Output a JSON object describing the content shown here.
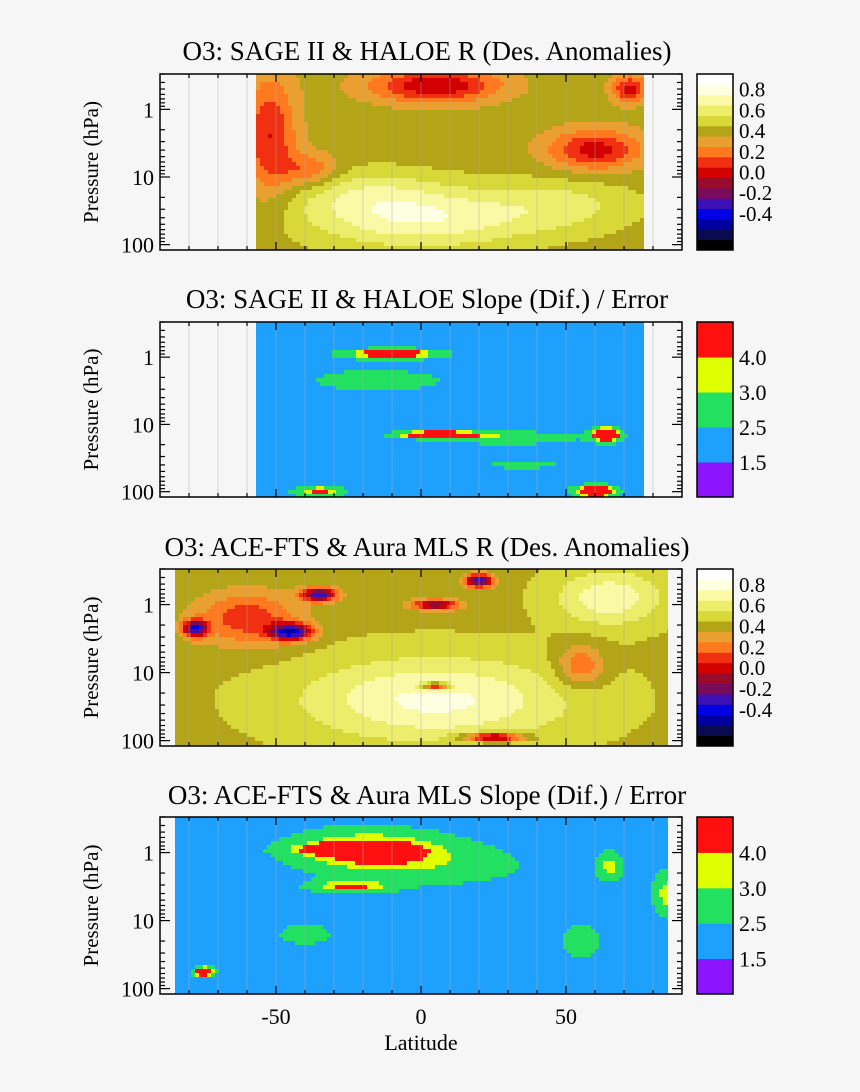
{
  "figure": {
    "xlabel": "Latitude",
    "ylabel": "Pressure (hPa)",
    "x_tick_labels": [
      "-50",
      "0",
      "50"
    ],
    "y_tick_labels": [
      "1",
      "10",
      "100"
    ]
  },
  "chart_data": [
    {
      "type": "heatmap",
      "title": "O3: SAGE II & HALOE R (Des. Anomalies)",
      "xlabel": "",
      "ylabel": "Pressure (hPa)",
      "x_ticks": [
        -50,
        0,
        50
      ],
      "y_ticks": [
        1,
        10,
        100
      ],
      "y_scale": "log",
      "y_reversed": true,
      "data_extent_lat": [
        -57,
        77
      ],
      "colorbar": {
        "labels": [
          "0.8",
          "0.6",
          "0.4",
          "0.2",
          "0.0",
          "-0.2",
          "-0.4"
        ],
        "levels": [
          -0.5,
          -0.4,
          -0.3,
          -0.2,
          -0.1,
          0.0,
          0.1,
          0.2,
          0.3,
          0.4,
          0.5,
          0.6,
          0.7,
          0.8,
          0.9,
          1.0
        ],
        "colors": [
          "#000000",
          "#0a0a50",
          "#0000a0",
          "#0000e6",
          "#3c10b4",
          "#7a0a5a",
          "#9a0a2a",
          "#d20000",
          "#f03010",
          "#ff7a1e",
          "#e9a030",
          "#b4a418",
          "#d8d838",
          "#eded6c",
          "#fafaa6",
          "#ffffe2",
          "#ffffff"
        ]
      },
      "grid": true
    },
    {
      "type": "heatmap",
      "title": "O3: SAGE II & HALOE Slope (Dif.) / Error",
      "xlabel": "",
      "ylabel": "Pressure (hPa)",
      "x_ticks": [
        -50,
        0,
        50
      ],
      "y_ticks": [
        1,
        10,
        100
      ],
      "y_scale": "log",
      "y_reversed": true,
      "data_extent_lat": [
        -57,
        77
      ],
      "colorbar": {
        "labels": [
          "4.0",
          "3.0",
          "2.5",
          "1.5"
        ],
        "levels": [
          0,
          1.5,
          2.5,
          3.0,
          4.0
        ],
        "colors": [
          "#8c14ff",
          "#1ea0ff",
          "#22e060",
          "#dfff00",
          "#ff1010"
        ]
      },
      "grid": true
    },
    {
      "type": "heatmap",
      "title": "O3: ACE-FTS & Aura MLS R (Des. Anomalies)",
      "xlabel": "",
      "ylabel": "Pressure (hPa)",
      "x_ticks": [
        -50,
        0,
        50
      ],
      "y_ticks": [
        1,
        10,
        100
      ],
      "y_scale": "log",
      "y_reversed": true,
      "data_extent_lat": [
        -85,
        85
      ],
      "colorbar": {
        "labels": [
          "0.8",
          "0.6",
          "0.4",
          "0.2",
          "0.0",
          "-0.2",
          "-0.4"
        ],
        "levels": [
          -0.5,
          -0.4,
          -0.3,
          -0.2,
          -0.1,
          0.0,
          0.1,
          0.2,
          0.3,
          0.4,
          0.5,
          0.6,
          0.7,
          0.8,
          0.9,
          1.0
        ],
        "colors": [
          "#000000",
          "#0a0a50",
          "#0000a0",
          "#0000e6",
          "#3c10b4",
          "#7a0a5a",
          "#9a0a2a",
          "#d20000",
          "#f03010",
          "#ff7a1e",
          "#e9a030",
          "#b4a418",
          "#d8d838",
          "#eded6c",
          "#fafaa6",
          "#ffffe2",
          "#ffffff"
        ]
      },
      "grid": true
    },
    {
      "type": "heatmap",
      "title": "O3: ACE-FTS & Aura MLS Slope (Dif.) / Error",
      "xlabel": "Latitude",
      "ylabel": "Pressure (hPa)",
      "x_ticks": [
        -50,
        0,
        50
      ],
      "y_ticks": [
        1,
        10,
        100
      ],
      "y_scale": "log",
      "y_reversed": true,
      "data_extent_lat": [
        -85,
        85
      ],
      "colorbar": {
        "labels": [
          "4.0",
          "3.0",
          "2.5",
          "1.5"
        ],
        "levels": [
          0,
          1.5,
          2.5,
          3.0,
          4.0
        ],
        "colors": [
          "#8c14ff",
          "#1ea0ff",
          "#22e060",
          "#dfff00",
          "#ff1010"
        ]
      },
      "grid": true
    }
  ]
}
